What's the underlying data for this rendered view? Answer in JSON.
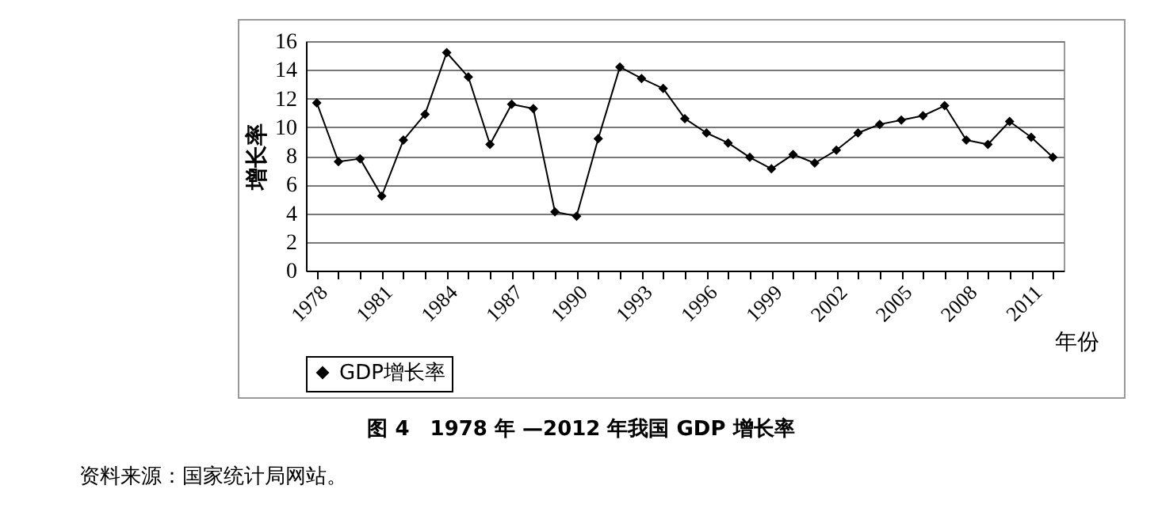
{
  "chart_data": {
    "type": "line",
    "title": "图 4　1978 年 —2012 年我国 GDP 增长率",
    "annotations": [
      "资料来源：国家统计局网站。"
    ],
    "xlabel": "年份",
    "ylabel": "增长率",
    "categories": [
      "1978",
      null,
      null,
      "1981",
      null,
      null,
      "1984",
      null,
      null,
      "1987",
      null,
      null,
      "1990",
      null,
      null,
      "1993",
      null,
      null,
      "1996",
      null,
      null,
      "1999",
      null,
      null,
      "2002",
      null,
      null,
      "2005",
      null,
      null,
      "2008",
      null,
      null,
      "2011",
      null
    ],
    "series": [
      {
        "name": "GDP增长率",
        "color": "#000000",
        "values": [
          11.7,
          7.6,
          7.8,
          5.2,
          9.1,
          10.9,
          15.2,
          13.5,
          8.8,
          11.6,
          11.3,
          4.1,
          3.8,
          9.2,
          14.2,
          13.4,
          12.7,
          10.6,
          9.6,
          8.9,
          7.9,
          7.1,
          8.1,
          7.5,
          8.4,
          9.6,
          10.2,
          10.5,
          10.8,
          11.5,
          9.1,
          8.8,
          10.4,
          9.3,
          7.9
        ]
      }
    ],
    "ylim": [
      0,
      16
    ],
    "yticks": [
      0,
      2,
      4,
      6,
      8,
      10,
      12,
      14,
      16
    ],
    "grid": "y",
    "legend": "bottom",
    "marker": "diamond",
    "line_style": "solid"
  }
}
